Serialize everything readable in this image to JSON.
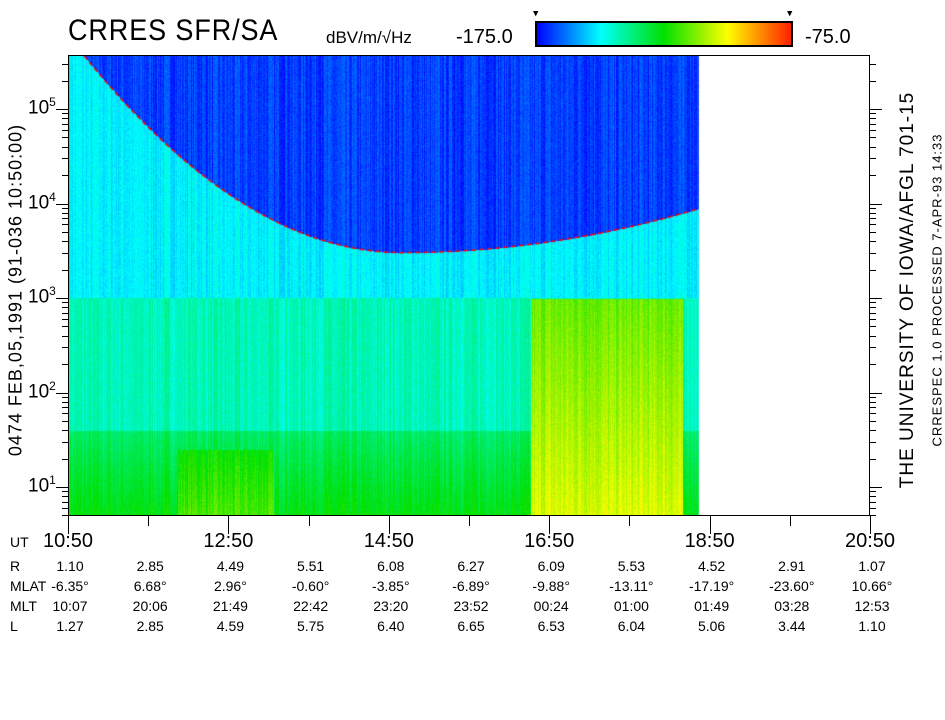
{
  "header": {
    "title": "CRRES SFR/SA",
    "units": "dBV/m/√Hz",
    "colorbar_min": "-175.0",
    "colorbar_max": "-75.0"
  },
  "side_label": "0474   FEB,05,1991   (91-036 10:50:00)",
  "right_text": {
    "line1": "THE UNIVERSITY OF IOWA/AFGL 701-15",
    "line2": "CRRESPEC 1.0   PROCESSED   7-APR-93   14:33"
  },
  "colors": {
    "colormap": [
      "#0000ff",
      "#00ffff",
      "#00e000",
      "#ffff00",
      "#ff2000"
    ],
    "fce_line": "#ff0000"
  },
  "chart_data": {
    "type": "heatmap",
    "title": "CRRES SFR/SA",
    "colorbar": {
      "label": "dBV/m/√Hz",
      "range": [
        -175.0,
        -75.0
      ]
    },
    "y_scale": "log",
    "y_ticks": [
      {
        "base": "10",
        "exp": "1"
      },
      {
        "base": "10",
        "exp": "2"
      },
      {
        "base": "10",
        "exp": "3"
      },
      {
        "base": "10",
        "exp": "4"
      },
      {
        "base": "10",
        "exp": "5"
      }
    ],
    "x_range": [
      "10:50",
      "20:50"
    ],
    "data_end": "18:42",
    "grid": false,
    "annotation_rows": [
      {
        "label": "UT",
        "values": [
          "10:50",
          "",
          "12:50",
          "",
          "14:50",
          "",
          "16:50",
          "",
          "18:50",
          "",
          "20:50"
        ]
      },
      {
        "label": "R",
        "values": [
          "1.10",
          "2.85",
          "4.49",
          "5.51",
          "6.08",
          "6.27",
          "6.09",
          "5.53",
          "4.52",
          "2.91",
          "1.07"
        ]
      },
      {
        "label": "MLAT",
        "values": [
          "-6.35°",
          "6.68°",
          "2.96°",
          "-0.60°",
          "-3.85°",
          "-6.89°",
          "-9.88°",
          "-13.11°",
          "-17.19°",
          "-23.60°",
          "10.66°"
        ]
      },
      {
        "label": "MLT",
        "values": [
          "10:07",
          "20:06",
          "21:49",
          "22:42",
          "23:20",
          "23:52",
          "00:24",
          "01:00",
          "01:49",
          "03:28",
          "12:53"
        ]
      },
      {
        "label": "L",
        "values": [
          "1.27",
          "2.85",
          "4.59",
          "5.75",
          "6.40",
          "6.65",
          "6.53",
          "6.04",
          "5.06",
          "3.44",
          "1.10"
        ]
      }
    ]
  }
}
